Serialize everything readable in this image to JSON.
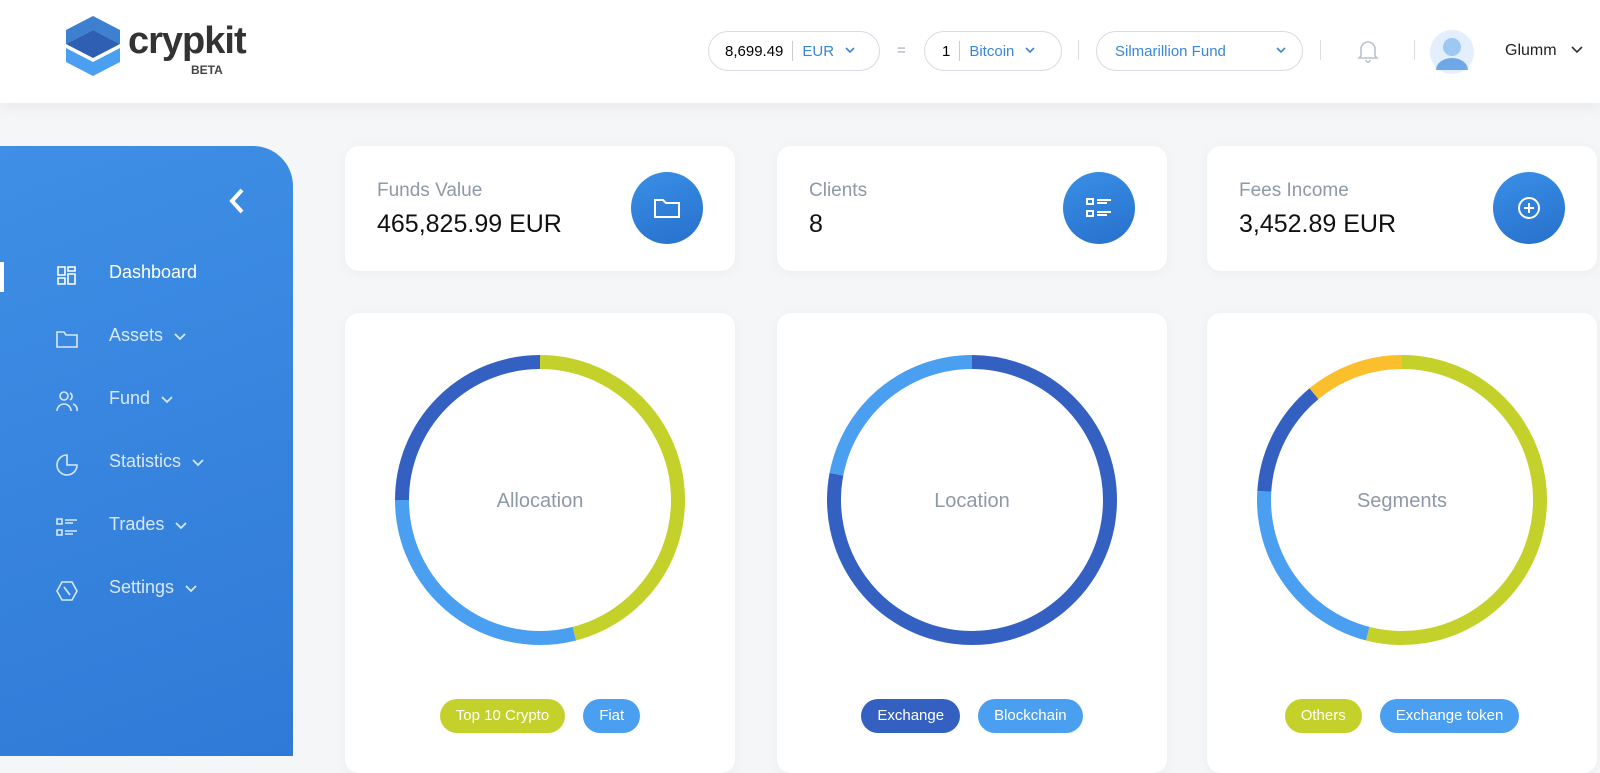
{
  "header": {
    "logo": "crypkit",
    "badge": "BETA",
    "amount": "8,699.49",
    "currency": "EUR",
    "equals": "=",
    "quantity": "1",
    "coin": "Bitcoin",
    "fund": "Silmarillion Fund",
    "user": "Glumm"
  },
  "sidebar": {
    "items": [
      "Dashboard",
      "Assets",
      "Fund",
      "Statistics",
      "Trades",
      "Settings"
    ]
  },
  "stats": [
    {
      "label": "Funds Value",
      "value": "465,825.99 EUR"
    },
    {
      "label": "Clients",
      "value": "8"
    },
    {
      "label": "Fees Income",
      "value": "3,452.89 EUR"
    }
  ],
  "chart_data": [
    {
      "type": "donut",
      "title": "Allocation",
      "categories": [
        "Top 10 Crypto",
        "Fiat",
        null
      ],
      "values": [
        46,
        29,
        25
      ],
      "colors": [
        "#c5d12b",
        "#4a9ff0",
        "#3461c1"
      ]
    },
    {
      "type": "donut",
      "title": "Location",
      "categories": [
        "Exchange",
        "Blockchain"
      ],
      "values": [
        78,
        22
      ],
      "colors": [
        "#3461c1",
        "#4a9ff0"
      ]
    },
    {
      "type": "donut",
      "title": "Segments",
      "categories": [
        "Others",
        "Exchange token",
        null,
        null
      ],
      "values": [
        54,
        22,
        13,
        11
      ],
      "colors": [
        "#c5d12b",
        "#4a9ff0",
        "#3461c1",
        "#fbbf2d"
      ]
    }
  ]
}
